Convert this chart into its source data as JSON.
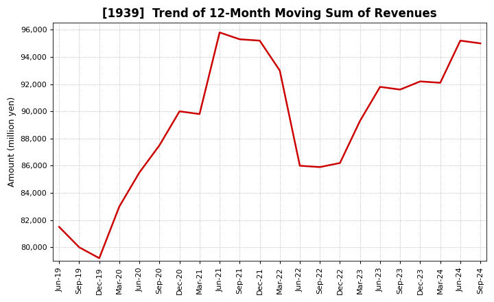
{
  "title": "[1939]  Trend of 12-Month Moving Sum of Revenues",
  "ylabel": "Amount (million yen)",
  "line_color": "#cc0000",
  "background_color": "#ffffff",
  "plot_bg_color": "#ffffff",
  "grid_color": "#aaaaaa",
  "ylim": [
    79000,
    96500
  ],
  "yticks": [
    80000,
    82000,
    84000,
    86000,
    88000,
    90000,
    92000,
    94000,
    96000
  ],
  "labels": [
    "Jun-19",
    "Sep-19",
    "Dec-19",
    "Mar-20",
    "Jun-20",
    "Sep-20",
    "Dec-20",
    "Mar-21",
    "Jun-21",
    "Sep-21",
    "Dec-21",
    "Mar-22",
    "Jun-22",
    "Sep-22",
    "Dec-22",
    "Mar-23",
    "Jun-23",
    "Sep-23",
    "Dec-23",
    "Mar-24",
    "Jun-24",
    "Sep-24"
  ],
  "values": [
    81500,
    80000,
    79200,
    83000,
    85500,
    87500,
    90000,
    89800,
    95800,
    95300,
    95200,
    93000,
    86000,
    85900,
    86200,
    89300,
    91800,
    91600,
    92200,
    92100,
    95200,
    95000
  ],
  "title_fontsize": 12,
  "title_fontweight": "bold",
  "ylabel_fontsize": 9,
  "tick_fontsize": 8,
  "line_width": 1.8
}
